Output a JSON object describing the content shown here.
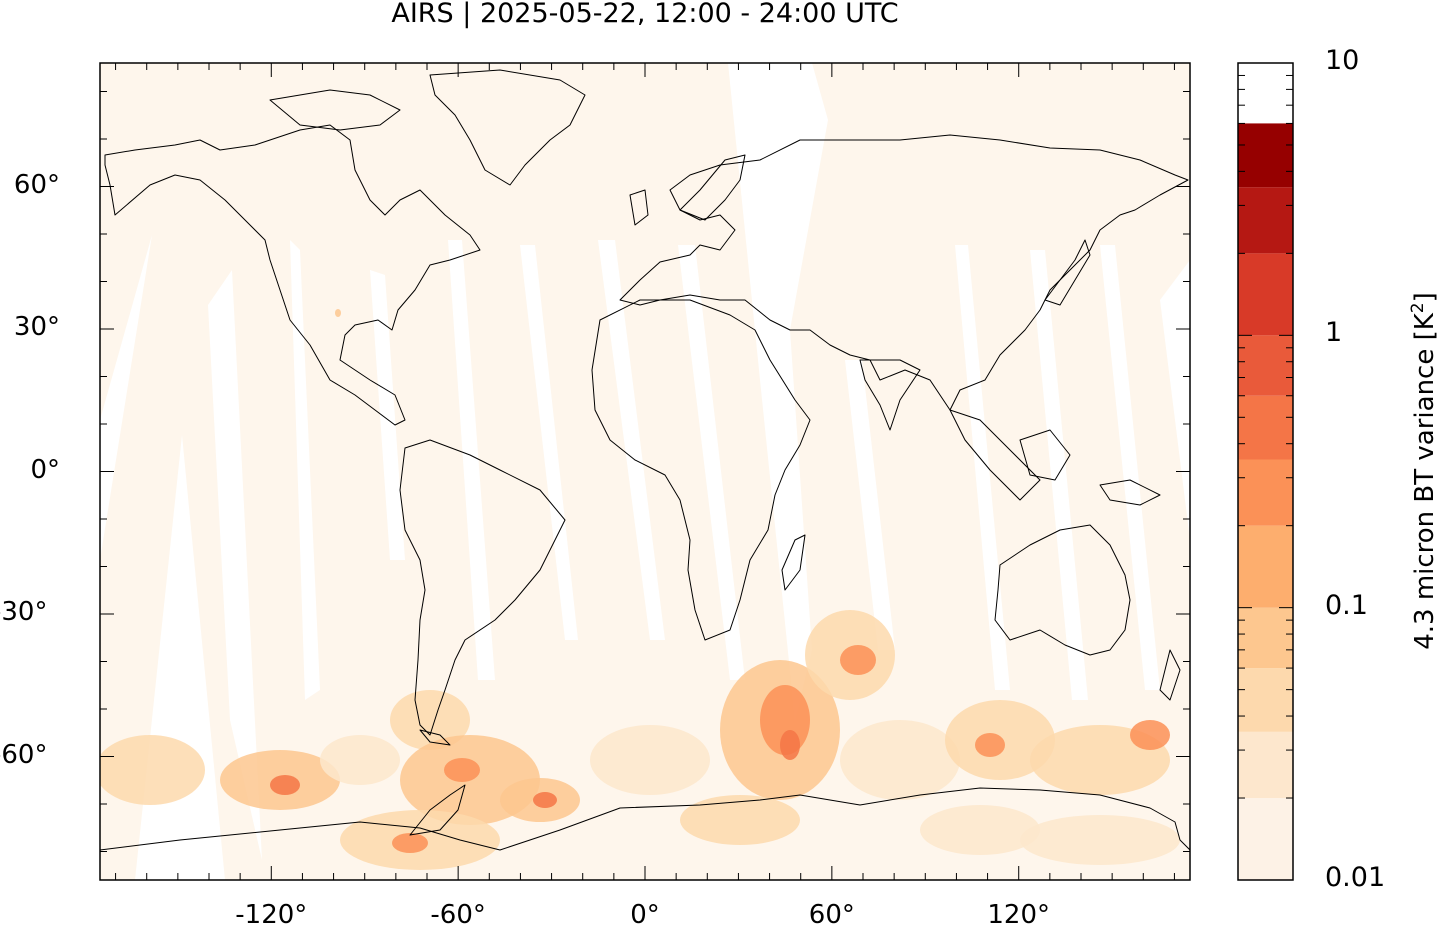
{
  "title": "AIRS | 2025-05-22, 12:00 - 24:00 UTC",
  "axes": {
    "y_ticks": [
      {
        "value": 60,
        "label": "60°"
      },
      {
        "value": 30,
        "label": "30°"
      },
      {
        "value": 0,
        "label": "0°"
      },
      {
        "value": -30,
        "label": "-30°"
      },
      {
        "value": -60,
        "label": "-60°"
      }
    ],
    "x_ticks": [
      {
        "value": -120,
        "label": "-120°"
      },
      {
        "value": -60,
        "label": "-60°"
      },
      {
        "value": 0,
        "label": "0°"
      },
      {
        "value": 60,
        "label": "60°"
      },
      {
        "value": 120,
        "label": "120°"
      }
    ],
    "lon_range": [
      -175,
      175
    ],
    "lat_range": [
      -86,
      86
    ]
  },
  "colorbar": {
    "title": "4.3 micron BT variance [K",
    "title_sup": "2",
    "title_end": "]",
    "scale": "log",
    "range": [
      0.01,
      10
    ],
    "labels": [
      {
        "value": 10,
        "label": "10"
      },
      {
        "value": 1,
        "label": "1"
      },
      {
        "value": 0.1,
        "label": "0.1"
      },
      {
        "value": 0.01,
        "label": "0.01"
      }
    ],
    "levels": [
      0.01,
      0.02,
      0.035,
      0.06,
      0.1,
      0.2,
      0.35,
      0.6,
      1,
      2,
      3.5,
      6,
      10
    ],
    "colors": [
      "#fdf2e6",
      "#fde7cd",
      "#fdd9ad",
      "#fdc78f",
      "#fdae6e",
      "#fb9157",
      "#f47547",
      "#e95a3a",
      "#d83a28",
      "#b51813",
      "#960000"
    ]
  }
}
